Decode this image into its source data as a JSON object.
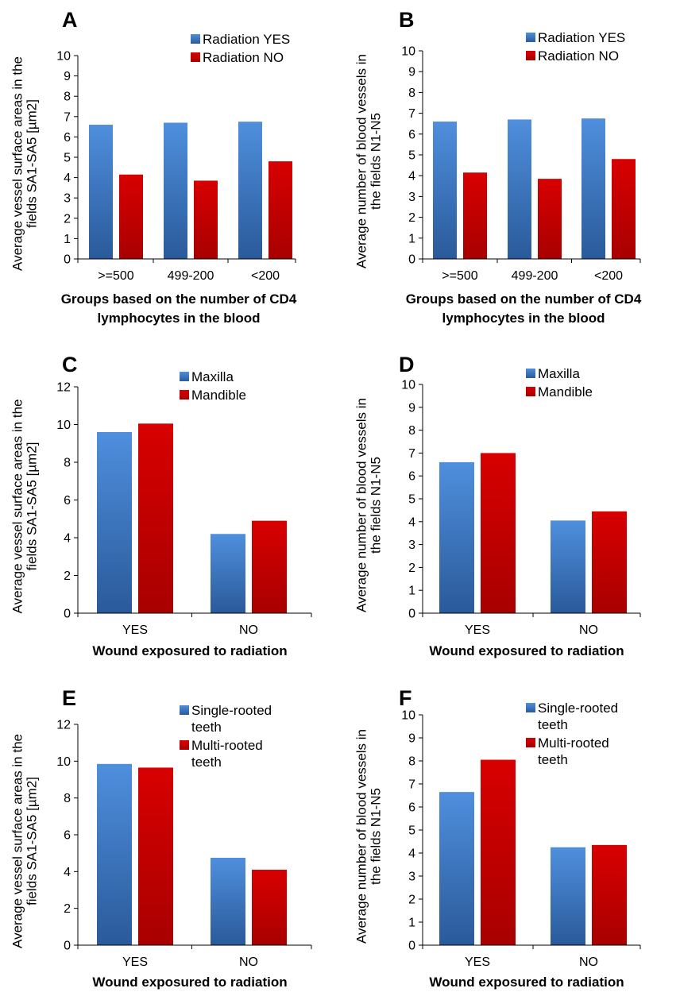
{
  "colors": {
    "blue_light": "#4f8fdd",
    "blue_dark": "#2a5a9a",
    "red_light": "#d80000",
    "red_dark": "#a80000",
    "axis": "#000000"
  },
  "chart_data": [
    {
      "panel": "A",
      "type": "bar",
      "categories": [
        ">=500",
        "499-200",
        "<200"
      ],
      "series": [
        {
          "name": "Radiation YES",
          "values": [
            6.6,
            6.7,
            6.75
          ]
        },
        {
          "name": "Radiation NO",
          "values": [
            4.15,
            3.85,
            4.8
          ]
        }
      ],
      "ylabel": [
        "Average vessel surface areas in the",
        "fields SA1-SA5 [µm2]"
      ],
      "xlabel": [
        "Groups based on the number of CD4",
        "lymphocytes in the blood"
      ],
      "ylim": [
        0,
        10
      ],
      "yticks": [
        0,
        1,
        2,
        3,
        4,
        5,
        6,
        7,
        8,
        9,
        10
      ],
      "legend": "top-right",
      "grid": false
    },
    {
      "panel": "B",
      "type": "bar",
      "categories": [
        ">=500",
        "499-200",
        "<200"
      ],
      "series": [
        {
          "name": "Radiation YES",
          "values": [
            6.6,
            6.7,
            6.75
          ]
        },
        {
          "name": "Radiation NO",
          "values": [
            4.15,
            3.85,
            4.8
          ]
        }
      ],
      "ylabel": [
        "Average number of blood vessels in",
        "the fields N1-N5"
      ],
      "xlabel": [
        "Groups based on the number of CD4",
        "lymphocytes in the blood"
      ],
      "ylim": [
        0,
        10
      ],
      "yticks": [
        0,
        1,
        2,
        3,
        4,
        5,
        6,
        7,
        8,
        9,
        10
      ],
      "legend": "top-right",
      "grid": false
    },
    {
      "panel": "C",
      "type": "bar",
      "categories": [
        "YES",
        "NO"
      ],
      "series": [
        {
          "name": "Maxilla",
          "values": [
            9.6,
            4.2
          ]
        },
        {
          "name": "Mandible",
          "values": [
            10.05,
            4.9
          ]
        }
      ],
      "ylabel": [
        "Average vessel surface areas in the",
        "fields SA1-SA5 [µm2]"
      ],
      "xlabel": [
        "Wound exposured to radiation"
      ],
      "ylim": [
        0,
        12
      ],
      "yticks": [
        0,
        2,
        4,
        6,
        8,
        10,
        12
      ],
      "legend": "top-right",
      "grid": false
    },
    {
      "panel": "D",
      "type": "bar",
      "categories": [
        "YES",
        "NO"
      ],
      "series": [
        {
          "name": "Maxilla",
          "values": [
            6.6,
            4.05
          ]
        },
        {
          "name": "Mandible",
          "values": [
            7.0,
            4.45
          ]
        }
      ],
      "ylabel": [
        "Average number of blood vessels in",
        "the fields N1-N5"
      ],
      "xlabel": [
        "Wound exposured to radiation"
      ],
      "ylim": [
        0,
        10
      ],
      "yticks": [
        0,
        1,
        2,
        3,
        4,
        5,
        6,
        7,
        8,
        9,
        10
      ],
      "legend": "top-right",
      "grid": false
    },
    {
      "panel": "E",
      "type": "bar",
      "categories": [
        "YES",
        "NO"
      ],
      "series": [
        {
          "name": [
            "Single-rooted",
            "teeth"
          ],
          "values": [
            9.85,
            4.75
          ]
        },
        {
          "name": [
            "Multi-rooted",
            "teeth"
          ],
          "values": [
            9.65,
            4.1
          ]
        }
      ],
      "ylabel": [
        "Average vessel surface areas in the",
        "fields SA1-SA5 [µm2]"
      ],
      "xlabel": [
        "Wound exposured to radiation"
      ],
      "ylim": [
        0,
        12
      ],
      "yticks": [
        0,
        2,
        4,
        6,
        8,
        10,
        12
      ],
      "legend": "top-right",
      "grid": false
    },
    {
      "panel": "F",
      "type": "bar",
      "categories": [
        "YES",
        "NO"
      ],
      "series": [
        {
          "name": [
            "Single-rooted",
            "teeth"
          ],
          "values": [
            6.65,
            4.25
          ]
        },
        {
          "name": [
            "Multi-rooted",
            "teeth"
          ],
          "values": [
            8.05,
            4.35
          ]
        }
      ],
      "ylabel": [
        "Average number of blood vessels in",
        "the fields N1-N5"
      ],
      "xlabel": [
        "Wound exposured to radiation"
      ],
      "ylim": [
        0,
        10
      ],
      "yticks": [
        0,
        1,
        2,
        3,
        4,
        5,
        6,
        7,
        8,
        9,
        10
      ],
      "legend": "top-right",
      "grid": false
    }
  ]
}
